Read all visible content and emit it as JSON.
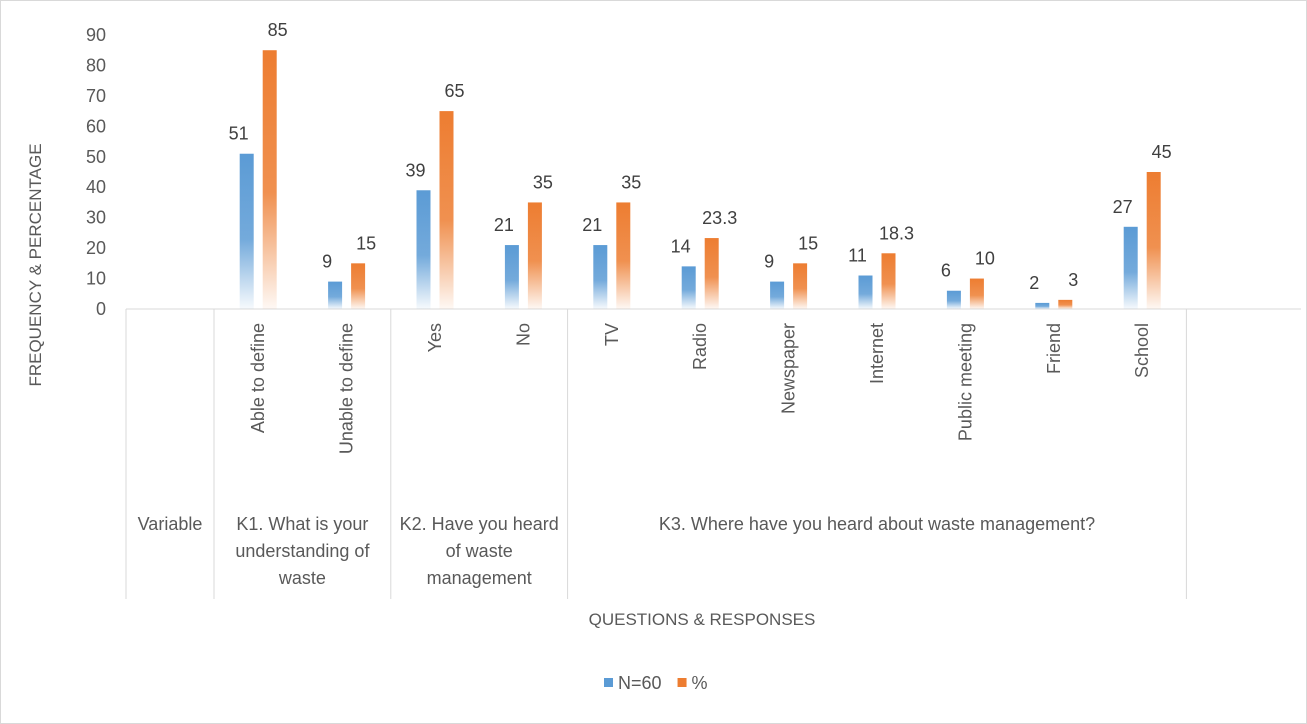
{
  "chart_data": {
    "type": "bar",
    "ylabel": "FREQUENCY & PERCENTAGE",
    "xlabel": "QUESTIONS & RESPONSES",
    "ylim": [
      0,
      90
    ],
    "yticks": [
      0,
      10,
      20,
      30,
      40,
      50,
      60,
      70,
      80,
      90
    ],
    "grid": false,
    "legend_position": "bottom",
    "row_header": "Variable",
    "groups": [
      {
        "label": "K1. What is your understanding of waste",
        "categories": [
          "Able to define",
          "Unable to define"
        ]
      },
      {
        "label": "K2. Have you heard of waste management",
        "categories": [
          "Yes",
          "No"
        ]
      },
      {
        "label": "K3. Where have you heard about waste management?",
        "categories": [
          "TV",
          "Radio",
          "Newspaper",
          "Internet",
          "Public meeting",
          "Friend",
          "School"
        ]
      }
    ],
    "categories": [
      "Able to define",
      "Unable to define",
      "Yes",
      "No",
      "TV",
      "Radio",
      "Newspaper",
      "Internet",
      "Public meeting",
      "Friend",
      "School"
    ],
    "series": [
      {
        "name": "N=60",
        "color": "#5b9bd5",
        "values": [
          51,
          9,
          39,
          21,
          21,
          14,
          9,
          11,
          6,
          2,
          27
        ],
        "labels": [
          "51",
          "9",
          "39",
          "21",
          "21",
          "14",
          "9",
          "11",
          "6",
          "2",
          "27"
        ]
      },
      {
        "name": "%",
        "color": "#ed7d31",
        "values": [
          85,
          15,
          65,
          35,
          35,
          23.3,
          15,
          18.3,
          10,
          3,
          45
        ],
        "labels": [
          "85",
          "15",
          "65",
          "35",
          "35",
          "23.3",
          "15",
          "18.3",
          "10",
          "3",
          "45"
        ]
      }
    ]
  }
}
